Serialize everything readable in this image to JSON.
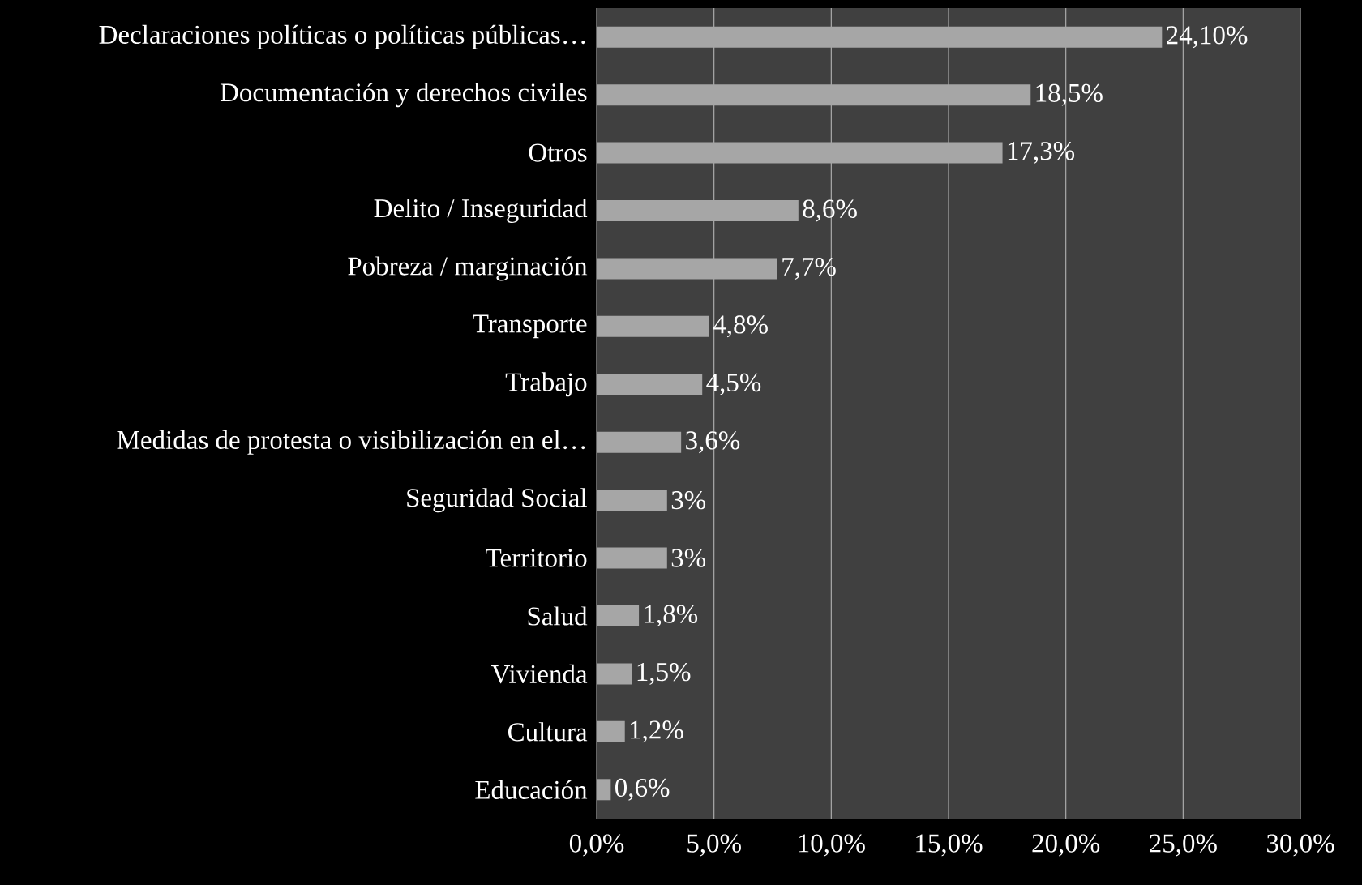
{
  "chart_data": {
    "type": "bar",
    "orientation": "horizontal",
    "categories": [
      "Declaraciones políticas o políticas públicas…",
      "Documentación y derechos civiles",
      "Otros",
      "Delito / Inseguridad",
      "Pobreza / marginación",
      "Transporte",
      "Trabajo",
      "Medidas de protesta o visibilización en el…",
      "Seguridad Social",
      "Territorio",
      "Salud",
      "Vivienda",
      "Cultura",
      "Educación"
    ],
    "values": [
      24.1,
      18.5,
      17.3,
      8.6,
      7.7,
      4.8,
      4.5,
      3.6,
      3,
      3,
      1.8,
      1.5,
      1.2,
      0.6
    ],
    "value_labels": [
      "24,10%",
      "18,5%",
      "17,3%",
      "8,6%",
      "7,7%",
      "4,8%",
      "4,5%",
      "3,6%",
      "3%",
      "3%",
      "1,8%",
      "1,5%",
      "1,2%",
      "0,6%"
    ],
    "color": "#a6a6a6",
    "xlim": [
      0,
      30
    ],
    "xticks": [
      {
        "value": 0,
        "label": "0,0%"
      },
      {
        "value": 5,
        "label": "5,0%"
      },
      {
        "value": 10,
        "label": "10,0%"
      },
      {
        "value": 15,
        "label": "15,0%"
      },
      {
        "value": 20,
        "label": "20,0%"
      },
      {
        "value": 25,
        "label": "25,0%"
      },
      {
        "value": 30,
        "label": "30,0%"
      }
    ],
    "grid": "x"
  }
}
